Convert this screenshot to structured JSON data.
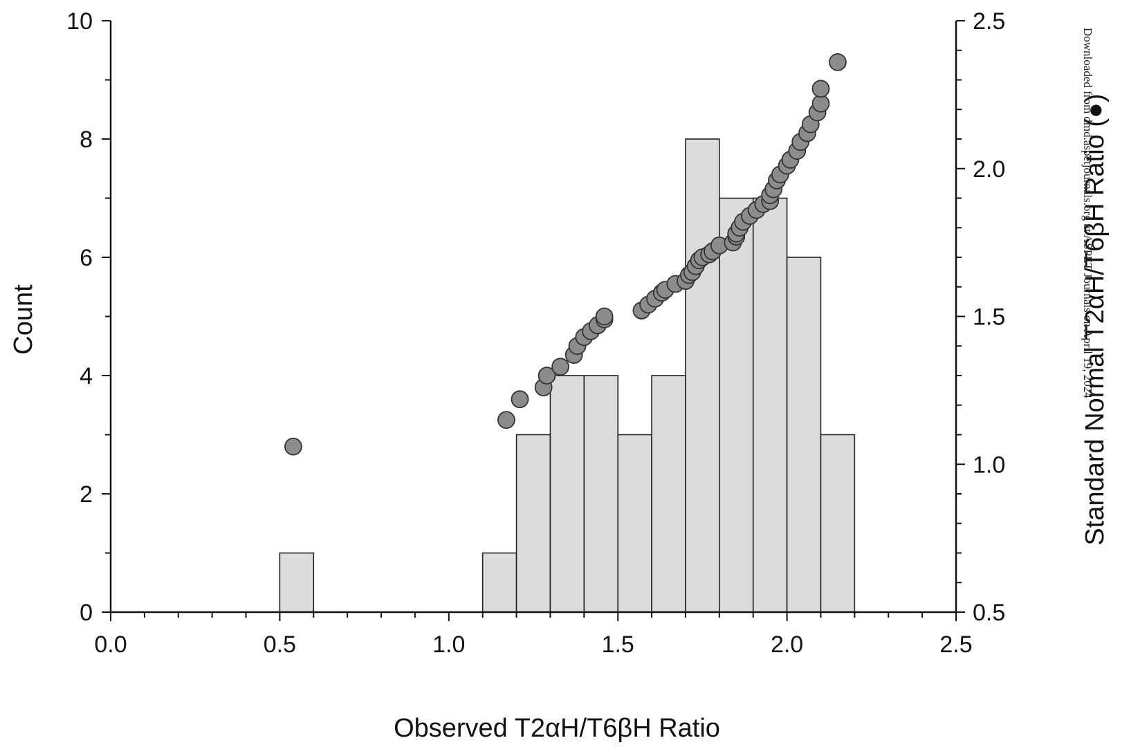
{
  "chart_data": {
    "type": "bar",
    "subtype": "histogram with overlaid scatter",
    "title": "",
    "xlabel": "Observed T2αH/T6βH Ratio",
    "ylabel_left": "Count",
    "ylabel_right": "Standard Normal T2αH/T6βH Ratio (●)",
    "xlim": [
      0.0,
      2.5
    ],
    "ylim_left": [
      0,
      10
    ],
    "ylim_right": [
      0.5,
      2.5
    ],
    "x_ticks": [
      "0.0",
      "0.5",
      "1.0",
      "1.5",
      "2.0",
      "2.5"
    ],
    "y_left_ticks": [
      "0",
      "2",
      "4",
      "6",
      "8",
      "10"
    ],
    "y_right_ticks": [
      "0.5",
      "1.0",
      "1.5",
      "2.0",
      "2.5"
    ],
    "grid": false,
    "colors": {
      "bar_fill": "#dcdcdc",
      "bar_stroke": "#222222",
      "point_fill": "#8c8c8c",
      "point_stroke": "#333333",
      "axis": "#111111"
    },
    "histogram": {
      "bin_width": 0.1,
      "bins": [
        {
          "start": 0.5,
          "count": 1
        },
        {
          "start": 1.1,
          "count": 1
        },
        {
          "start": 1.2,
          "count": 3
        },
        {
          "start": 1.3,
          "count": 4
        },
        {
          "start": 1.4,
          "count": 4
        },
        {
          "start": 1.5,
          "count": 3
        },
        {
          "start": 1.6,
          "count": 4
        },
        {
          "start": 1.7,
          "count": 8
        },
        {
          "start": 1.8,
          "count": 7
        },
        {
          "start": 1.9,
          "count": 7
        },
        {
          "start": 2.0,
          "count": 6
        },
        {
          "start": 2.1,
          "count": 3
        }
      ]
    },
    "scatter": {
      "axis": "right",
      "points": [
        [
          0.54,
          1.06
        ],
        [
          1.17,
          1.15
        ],
        [
          1.21,
          1.22
        ],
        [
          1.28,
          1.26
        ],
        [
          1.29,
          1.3
        ],
        [
          1.33,
          1.33
        ],
        [
          1.37,
          1.37
        ],
        [
          1.38,
          1.4
        ],
        [
          1.4,
          1.43
        ],
        [
          1.42,
          1.45
        ],
        [
          1.44,
          1.47
        ],
        [
          1.46,
          1.49
        ],
        [
          1.46,
          1.5
        ],
        [
          1.57,
          1.52
        ],
        [
          1.59,
          1.54
        ],
        [
          1.61,
          1.56
        ],
        [
          1.63,
          1.58
        ],
        [
          1.64,
          1.59
        ],
        [
          1.67,
          1.61
        ],
        [
          1.7,
          1.62
        ],
        [
          1.71,
          1.64
        ],
        [
          1.72,
          1.65
        ],
        [
          1.73,
          1.67
        ],
        [
          1.74,
          1.69
        ],
        [
          1.75,
          1.7
        ],
        [
          1.77,
          1.71
        ],
        [
          1.78,
          1.72
        ],
        [
          1.8,
          1.74
        ],
        [
          1.84,
          1.75
        ],
        [
          1.85,
          1.77
        ],
        [
          1.85,
          1.78
        ],
        [
          1.86,
          1.8
        ],
        [
          1.87,
          1.82
        ],
        [
          1.89,
          1.84
        ],
        [
          1.91,
          1.86
        ],
        [
          1.93,
          1.88
        ],
        [
          1.95,
          1.89
        ],
        [
          1.95,
          1.91
        ],
        [
          1.96,
          1.93
        ],
        [
          1.97,
          1.96
        ],
        [
          1.98,
          1.98
        ],
        [
          2.0,
          2.01
        ],
        [
          2.01,
          2.03
        ],
        [
          2.03,
          2.06
        ],
        [
          2.04,
          2.09
        ],
        [
          2.06,
          2.12
        ],
        [
          2.07,
          2.15
        ],
        [
          2.09,
          2.19
        ],
        [
          2.1,
          2.22
        ],
        [
          2.1,
          2.27
        ],
        [
          2.15,
          2.36
        ]
      ]
    }
  },
  "watermark": "Downloaded from dmd.aspetjournals.org at ASPET Journals on April 19, 2024"
}
